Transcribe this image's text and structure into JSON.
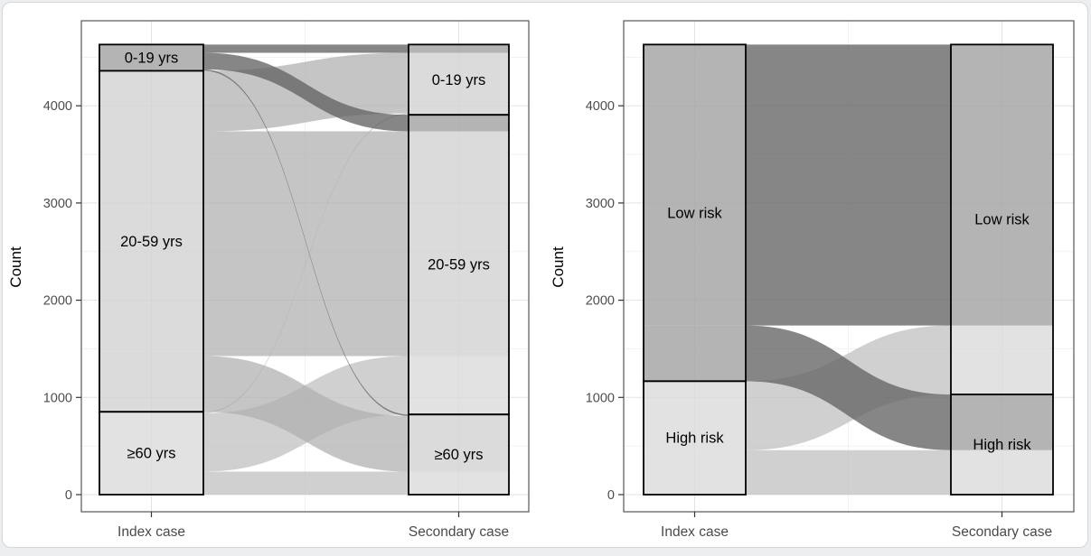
{
  "page": {
    "background": "#eceef0",
    "card_background": "#ffffff",
    "card_border": "#d3d7da"
  },
  "colors": {
    "stratum_fill": "rgba(255,255,255,0.38)",
    "stratum_border": "#000000",
    "panel_border": "#565656",
    "grid_major": "#e3e3e3",
    "grid_minor": "#f1f1f1",
    "tick_mark": "#333333",
    "tick_text": "#4d4d4d",
    "category_text": "#4a4a4a",
    "label_text": "#000000",
    "flow_dark": "rgba(100,100,100,0.78)",
    "flow_medium": "rgba(175,175,175,0.72)",
    "flow_light": "rgba(185,185,185,0.68)"
  },
  "axis": {
    "y_title": "Count",
    "y_tick_labels": [
      "0",
      "1000",
      "2000",
      "3000",
      "4000"
    ],
    "y_tick_values": [
      0,
      1000,
      2000,
      3000,
      4000
    ],
    "y_minor_values": [
      500,
      1500,
      2500,
      3500,
      4500
    ],
    "x_categories": [
      "Index case",
      "Secondary case"
    ],
    "ylim": [
      0,
      4872
    ]
  },
  "chart_data": [
    {
      "type": "alluvial",
      "panel": "age-groups",
      "x_categories": [
        "Index case",
        "Secondary case"
      ],
      "ylabel": "Count",
      "ylim": [
        0,
        4872
      ],
      "grid": true,
      "legend_position": "none",
      "strata_order": [
        "0-19 yrs",
        "20-59 yrs",
        "≥60 yrs"
      ],
      "stratum_color_keys": {
        "0-19 yrs": "flow_dark",
        "20-59 yrs": "flow_medium",
        "≥60 yrs": "flow_light"
      },
      "index_totals": {
        "0-19 yrs": 270,
        "20-59 yrs": 3508,
        "≥60 yrs": 852
      },
      "secondary_totals": {
        "0-19 yrs": 723,
        "20-59 yrs": 3082,
        "≥60 yrs": 825
      },
      "flows": [
        {
          "from": "0-19 yrs",
          "to": "0-19 yrs",
          "value": 85
        },
        {
          "from": "0-19 yrs",
          "to": "20-59 yrs",
          "value": 170
        },
        {
          "from": "0-19 yrs",
          "to": "≥60 yrs",
          "value": 15
        },
        {
          "from": "20-59 yrs",
          "to": "0-19 yrs",
          "value": 623
        },
        {
          "from": "20-59 yrs",
          "to": "20-59 yrs",
          "value": 2312
        },
        {
          "from": "20-59 yrs",
          "to": "≥60 yrs",
          "value": 573
        },
        {
          "from": "≥60 yrs",
          "to": "0-19 yrs",
          "value": 15
        },
        {
          "from": "≥60 yrs",
          "to": "20-59 yrs",
          "value": 600
        },
        {
          "from": "≥60 yrs",
          "to": "≥60 yrs",
          "value": 237
        }
      ]
    },
    {
      "type": "alluvial",
      "panel": "risk-groups",
      "x_categories": [
        "Index case",
        "Secondary case"
      ],
      "ylabel": "Count",
      "ylim": [
        0,
        4872
      ],
      "grid": true,
      "legend_position": "none",
      "strata_order": [
        "Low risk",
        "High risk"
      ],
      "stratum_color_keys": {
        "Low risk": "flow_dark",
        "High risk": "flow_light"
      },
      "index_totals": {
        "Low risk": 3463,
        "High risk": 1167
      },
      "secondary_totals": {
        "Low risk": 3600,
        "High risk": 1030
      },
      "flows": [
        {
          "from": "Low risk",
          "to": "Low risk",
          "value": 2890
        },
        {
          "from": "Low risk",
          "to": "High risk",
          "value": 573
        },
        {
          "from": "High risk",
          "to": "Low risk",
          "value": 710
        },
        {
          "from": "High risk",
          "to": "High risk",
          "value": 457
        }
      ]
    }
  ]
}
